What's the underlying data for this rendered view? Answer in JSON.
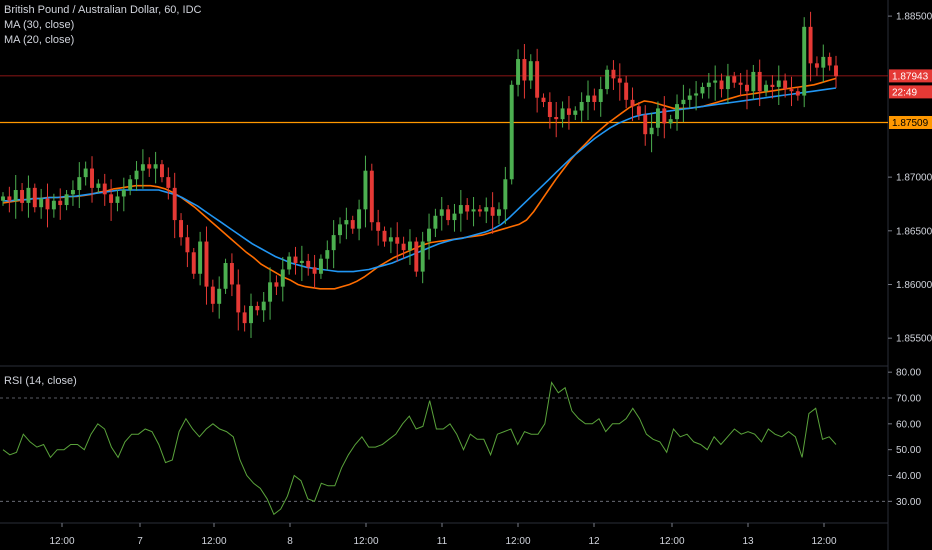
{
  "legend": {
    "symbol": "British Pound / Australian Dollar, 60, IDC",
    "ma30": "MA (30, close)",
    "ma20": "MA (20, close)",
    "rsi": "RSI (14, close)"
  },
  "colors": {
    "background": "#000000",
    "up_candle": "#4caf50",
    "down_candle": "#e53935",
    "ma20": "#ff6d00",
    "ma30": "#2196f3",
    "rsi_line": "#5aa33b",
    "price_line": "#b71c1c",
    "hline": "#ff9800",
    "last_price_tag": "#e53935",
    "hline_tag": "#ff9800"
  },
  "tags": {
    "last_price": "1.87943",
    "countdown": "22:49",
    "hline_price": "1.87509"
  },
  "chart_data": [
    {
      "type": "candlestick",
      "title": "British Pound / Australian Dollar, 60, IDC",
      "ylim": [
        1.8525,
        1.8865
      ],
      "y_ticks": [
        "1.88500",
        "1.87000",
        "1.86500",
        "1.86000",
        "1.85500"
      ],
      "x_ticks": [
        "12:00",
        "7",
        "12:00",
        "8",
        "12:00",
        "11",
        "12:00",
        "12",
        "12:00",
        "13",
        "12:00"
      ],
      "horizontal_line": 1.87509,
      "last_price": 1.87943,
      "closes": [
        1.8682,
        1.8678,
        1.8688,
        1.8676,
        1.869,
        1.8672,
        1.868,
        1.867,
        1.8678,
        1.8674,
        1.8684,
        1.8688,
        1.87,
        1.8708,
        1.869,
        1.8694,
        1.8684,
        1.8676,
        1.8682,
        1.8688,
        1.8698,
        1.8706,
        1.8712,
        1.8708,
        1.8712,
        1.87,
        1.869,
        1.866,
        1.8644,
        1.863,
        1.861,
        1.864,
        1.8598,
        1.8582,
        1.8596,
        1.862,
        1.86,
        1.8574,
        1.8564,
        1.858,
        1.8576,
        1.8584,
        1.8602,
        1.8598,
        1.8614,
        1.8626,
        1.862,
        1.8622,
        1.8616,
        1.861,
        1.8624,
        1.8632,
        1.8646,
        1.8656,
        1.866,
        1.8652,
        1.867,
        1.8706,
        1.8658,
        1.865,
        1.864,
        1.8644,
        1.8638,
        1.8632,
        1.864,
        1.8612,
        1.864,
        1.8652,
        1.8664,
        1.867,
        1.866,
        1.8666,
        1.8674,
        1.8668,
        1.867,
        1.8668,
        1.8672,
        1.8664,
        1.867,
        1.8698,
        1.8786,
        1.881,
        1.879,
        1.8808,
        1.8774,
        1.877,
        1.8756,
        1.8754,
        1.8764,
        1.8758,
        1.8762,
        1.877,
        1.8776,
        1.877,
        1.8782,
        1.88,
        1.8792,
        1.8788,
        1.8772,
        1.8766,
        1.8758,
        1.874,
        1.8746,
        1.8764,
        1.875,
        1.8754,
        1.8768,
        1.8772,
        1.8776,
        1.8778,
        1.8784,
        1.8788,
        1.879,
        1.8782,
        1.8794,
        1.8788,
        1.8786,
        1.878,
        1.8798,
        1.878,
        1.8786,
        1.8784,
        1.879,
        1.8782,
        1.878,
        1.8776,
        1.884,
        1.8806,
        1.8802,
        1.8812,
        1.8804,
        1.8794
      ],
      "series": [
        {
          "name": "MA (20, close)",
          "values": [
            1.8676,
            1.8677,
            1.8678,
            1.8679,
            1.868,
            1.868,
            1.8681,
            1.8681,
            1.8681,
            1.8682,
            1.8682,
            1.8683,
            1.8684,
            1.8686,
            1.8687,
            1.8689,
            1.869,
            1.8691,
            1.8692,
            1.8692,
            1.8692,
            1.8691,
            1.8689,
            1.8686,
            1.8682,
            1.8677,
            1.8672,
            1.8666,
            1.866,
            1.8654,
            1.8648,
            1.8642,
            1.8636,
            1.863,
            1.8625,
            1.8619,
            1.8615,
            1.8611,
            1.8607,
            1.8604,
            1.86,
            1.8598,
            1.8597,
            1.8596,
            1.8596,
            1.8596,
            1.8598,
            1.86,
            1.8603,
            1.8607,
            1.8612,
            1.8617,
            1.8621,
            1.8625,
            1.8628,
            1.8631,
            1.8634,
            1.8637,
            1.8639,
            1.864,
            1.8641,
            1.8642,
            1.8643,
            1.8644,
            1.8645,
            1.8646,
            1.8648,
            1.865,
            1.8652,
            1.8654,
            1.8656,
            1.866,
            1.8668,
            1.8678,
            1.8688,
            1.8698,
            1.8707,
            1.8716,
            1.8724,
            1.8731,
            1.8738,
            1.8744,
            1.875,
            1.8755,
            1.876,
            1.8765,
            1.8768,
            1.8771,
            1.877,
            1.8768,
            1.8766,
            1.8764,
            1.8764,
            1.8764,
            1.8765,
            1.8766,
            1.8768,
            1.877,
            1.8772,
            1.8774,
            1.8776,
            1.8777,
            1.8778,
            1.8779,
            1.878,
            1.8781,
            1.8782,
            1.8783,
            1.8784,
            1.8785,
            1.8786,
            1.8788,
            1.879,
            1.8792
          ]
        },
        {
          "name": "MA (30, close)",
          "values": [
            1.8678,
            1.8678,
            1.8679,
            1.8679,
            1.868,
            1.868,
            1.8681,
            1.8681,
            1.8682,
            1.8682,
            1.8683,
            1.8684,
            1.8685,
            1.8686,
            1.8687,
            1.8688,
            1.8688,
            1.8688,
            1.8688,
            1.8688,
            1.8688,
            1.8686,
            1.8684,
            1.8681,
            1.8677,
            1.8673,
            1.8668,
            1.8663,
            1.8658,
            1.8653,
            1.8648,
            1.8643,
            1.8638,
            1.8634,
            1.863,
            1.8626,
            1.8623,
            1.862,
            1.8618,
            1.8616,
            1.8615,
            1.8614,
            1.8613,
            1.8612,
            1.8612,
            1.8612,
            1.8613,
            1.8614,
            1.8616,
            1.8618,
            1.862,
            1.8623,
            1.8626,
            1.8629,
            1.8632,
            1.8635,
            1.8638,
            1.864,
            1.8642,
            1.8643,
            1.8645,
            1.8647,
            1.8649,
            1.8652,
            1.8656,
            1.8662,
            1.8669,
            1.8676,
            1.8683,
            1.869,
            1.8697,
            1.8704,
            1.8711,
            1.8718,
            1.8724,
            1.873,
            1.8736,
            1.8741,
            1.8746,
            1.875,
            1.8753,
            1.8756,
            1.8758,
            1.8759,
            1.876,
            1.8761,
            1.8762,
            1.8763,
            1.8764,
            1.8765,
            1.8766,
            1.8767,
            1.8768,
            1.8769,
            1.877,
            1.8771,
            1.8772,
            1.8773,
            1.8774,
            1.8775,
            1.8776,
            1.8777,
            1.8778,
            1.8779,
            1.878,
            1.8781,
            1.8782,
            1.8783
          ]
        }
      ]
    },
    {
      "type": "line",
      "title": "RSI (14, close)",
      "ylim": [
        22,
        82
      ],
      "y_ticks": [
        "80.00",
        "70.00",
        "60.00",
        "50.00",
        "40.00",
        "30.00"
      ],
      "bands": [
        70,
        30
      ],
      "series": [
        {
          "name": "RSI (14, close)",
          "values": [
            50,
            48,
            49,
            56,
            53,
            51,
            52,
            47,
            50,
            50,
            52,
            52,
            50,
            56,
            60,
            58,
            51,
            47,
            53,
            56,
            56,
            58,
            57,
            52,
            45,
            46,
            57,
            62,
            58,
            55,
            58,
            60,
            58,
            57,
            55,
            46,
            40,
            37,
            35,
            31,
            25,
            27,
            32,
            40,
            38,
            31,
            30,
            37,
            36,
            36,
            43,
            48,
            52,
            55,
            51,
            51,
            52,
            54,
            56,
            60,
            63,
            58,
            59,
            69,
            58,
            58,
            60,
            56,
            50,
            56,
            54,
            54,
            48,
            56,
            57,
            58,
            52,
            57,
            56,
            56,
            60,
            76,
            72,
            74,
            65,
            62,
            60,
            60,
            62,
            57,
            60,
            60,
            62,
            66,
            62,
            56,
            54,
            53,
            49,
            58,
            55,
            56,
            53,
            52,
            50,
            55,
            52,
            55,
            58,
            56,
            57,
            56,
            53,
            58,
            56,
            55,
            57,
            55,
            47,
            64,
            66,
            54,
            55,
            52
          ]
        }
      ]
    }
  ]
}
